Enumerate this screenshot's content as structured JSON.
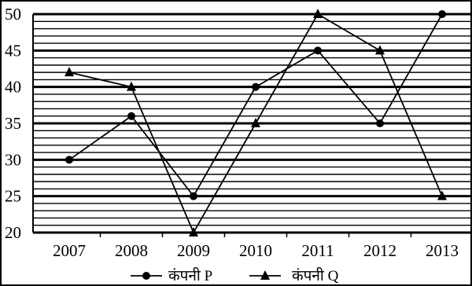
{
  "chart_data": {
    "type": "line",
    "categories": [
      "2007",
      "2008",
      "2009",
      "2010",
      "2011",
      "2012",
      "2013"
    ],
    "ylim": [
      20,
      50
    ],
    "yticks": [
      20,
      25,
      30,
      35,
      40,
      45,
      50
    ],
    "grid": true,
    "legend_position": "bottom",
    "series": [
      {
        "name": "कंपनी P",
        "marker": "circle",
        "values": [
          30,
          36,
          25,
          40,
          45,
          35,
          50
        ]
      },
      {
        "name": "कंपनी Q",
        "marker": "triangle",
        "values": [
          42,
          40,
          20,
          35,
          50,
          45,
          25
        ]
      }
    ],
    "colors": {
      "line": "#000000",
      "background": "#ffffff"
    }
  }
}
